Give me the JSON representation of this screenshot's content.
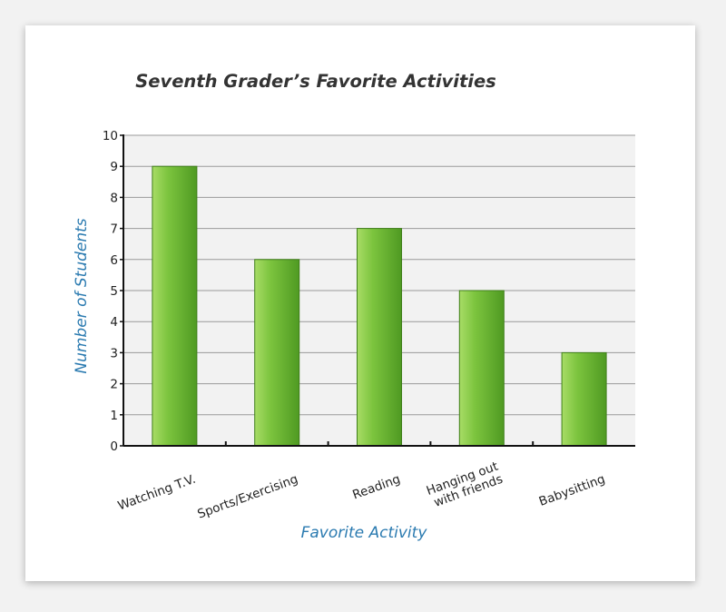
{
  "chart_data": {
    "type": "bar",
    "title": "Seventh Grader’s Favorite Activities",
    "xlabel": "Favorite Activity",
    "ylabel": "Number of Students",
    "categories": [
      "Watching T.V.",
      "Sports/Exercising",
      "Reading",
      "Hanging out with friends",
      "Babysitting"
    ],
    "category_lines": [
      [
        "Watching T.V."
      ],
      [
        "Sports/Exercising"
      ],
      [
        "Reading"
      ],
      [
        "Hanging out",
        "with friends"
      ],
      [
        "Babysitting"
      ]
    ],
    "values": [
      9,
      6,
      7,
      5,
      3
    ],
    "ylim": [
      0,
      10
    ],
    "yticks": [
      "0",
      "1",
      "2",
      "3",
      "4",
      "5",
      "6",
      "7",
      "8",
      "9",
      "10"
    ],
    "grid": true,
    "colors": {
      "bar_light": "#a8dc66",
      "bar_mid": "#7cc43e",
      "bar_dark": "#4f9a22",
      "bar_stroke": "#3f7f1a",
      "plot_bg": "#f2f2f2",
      "grid": "#9a9a9a",
      "axis": "#111111",
      "axis_label": "#2a7ab0"
    }
  }
}
